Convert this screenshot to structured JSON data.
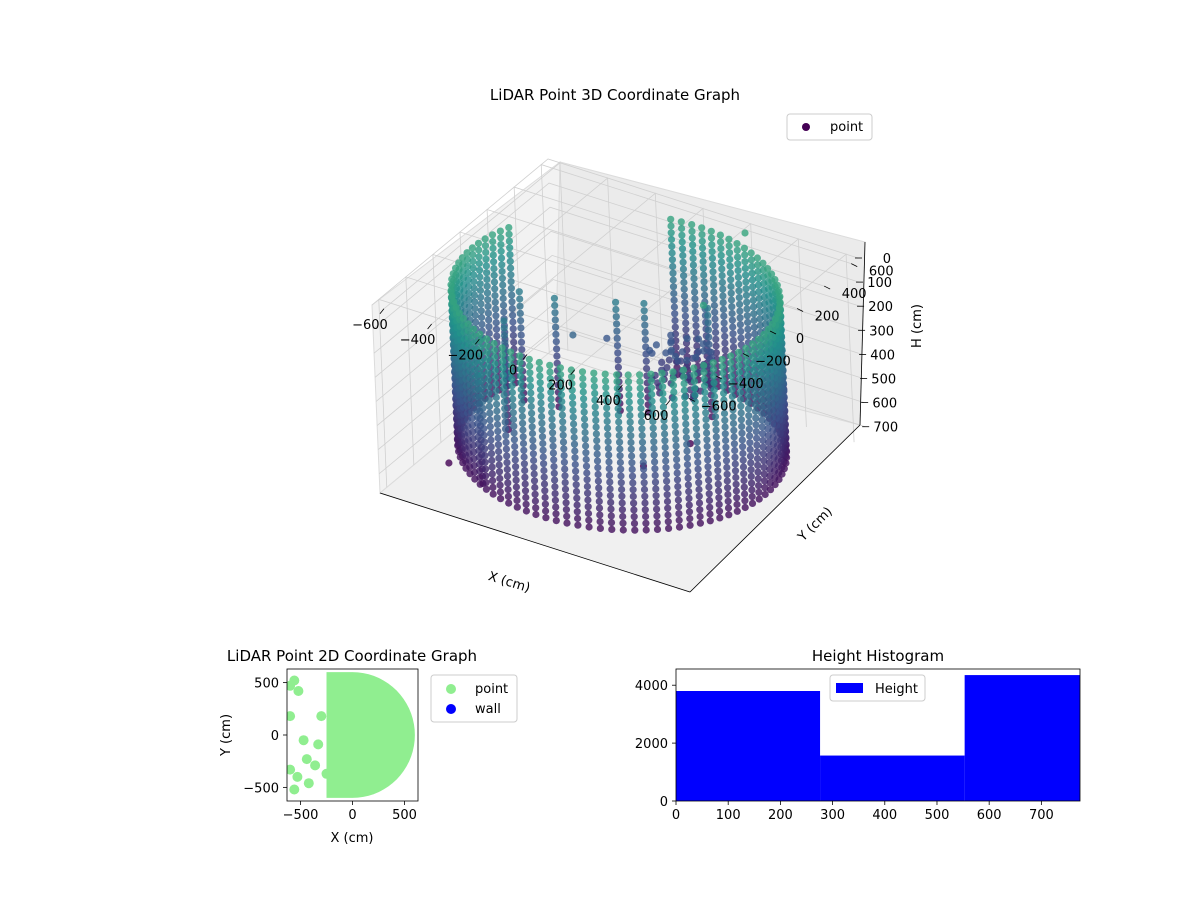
{
  "chart_data": [
    {
      "type": "scatter",
      "title": "LiDAR Point 3D Coordinate Graph",
      "xlabel": "X (cm)",
      "ylabel": "Y (cm)",
      "zlabel": "H (cm)",
      "xlim": [
        -650,
        650
      ],
      "ylim": [
        -650,
        650
      ],
      "zlim": [
        0,
        780
      ],
      "z_inverted": true,
      "x_ticks": [
        "−600",
        "−400",
        "−200",
        "0",
        "200",
        "400",
        "600"
      ],
      "y_ticks": [
        "−600",
        "−400",
        "−200",
        "0",
        "200",
        "400",
        "600"
      ],
      "z_ticks": [
        "0",
        "100",
        "200",
        "300",
        "400",
        "500",
        "600",
        "700"
      ],
      "grid": true,
      "legend": [
        "point"
      ],
      "legend_position": "upper-right",
      "colormap": [
        "#440154",
        "#3b528b",
        "#21918c",
        "#5ec962"
      ],
      "series": [
        {
          "name": "point",
          "description_values": {
            "wall_ring": {
              "radius": 600,
              "center": [
                0,
                0
              ],
              "arc_degrees": [
                -200,
                100
              ],
              "h_range": [
                50,
                700
              ]
            },
            "outliers": [
              [
                -560,
                -300,
                790
              ],
              [
                40,
                80,
                790
              ],
              [
                -320,
                -250,
                380
              ],
              [
                -460,
                -200,
                290
              ],
              [
                -260,
                120,
                360
              ],
              [
                -200,
                260,
                420
              ],
              [
                180,
                640,
                40
              ],
              [
                300,
                120,
                60
              ],
              [
                430,
                450,
                520
              ],
              [
                100,
                320,
                790
              ]
            ]
          }
        }
      ]
    },
    {
      "type": "scatter",
      "title": "LiDAR Point 2D Coordinate Graph",
      "xlabel": "X (cm)",
      "ylabel": "Y (cm)",
      "xlim": [
        -630,
        630
      ],
      "ylim": [
        -630,
        630
      ],
      "x_ticks": [
        "−500",
        "0",
        "500"
      ],
      "y_ticks": [
        "−500",
        "0",
        "500"
      ],
      "legend": [
        "point",
        "wall"
      ],
      "legend_position": "outside-right",
      "colors": {
        "point": "#90ee90",
        "wall": "#0000ff"
      },
      "series": [
        {
          "name": "point",
          "shape": "half-disk",
          "radius": 600,
          "flat_edge_x": -250,
          "extra_points": [
            [
              -560,
              520
            ],
            [
              -600,
              470
            ],
            [
              -520,
              420
            ],
            [
              -600,
              180
            ],
            [
              -300,
              180
            ],
            [
              -470,
              -50
            ],
            [
              -330,
              -90
            ],
            [
              -440,
              -230
            ],
            [
              -360,
              -290
            ],
            [
              -600,
              -330
            ],
            [
              -530,
              -400
            ],
            [
              -420,
              -460
            ],
            [
              -560,
              -520
            ],
            [
              -250,
              -370
            ]
          ]
        },
        {
          "name": "wall",
          "points": []
        }
      ]
    },
    {
      "type": "bar",
      "title": "Height Histogram",
      "xlabel": "",
      "ylabel": "",
      "bins": [
        [
          0,
          276
        ],
        [
          276,
          553
        ],
        [
          553,
          774
        ]
      ],
      "values": [
        3800,
        1570,
        4350
      ],
      "xlim": [
        0,
        774
      ],
      "ylim": [
        0,
        4560
      ],
      "x_ticks": [
        "0",
        "100",
        "200",
        "300",
        "400",
        "500",
        "600",
        "700"
      ],
      "y_ticks": [
        "0",
        "2000",
        "4000"
      ],
      "legend": [
        "Height"
      ],
      "legend_position": "upper-center",
      "color": "#0000ff"
    }
  ]
}
